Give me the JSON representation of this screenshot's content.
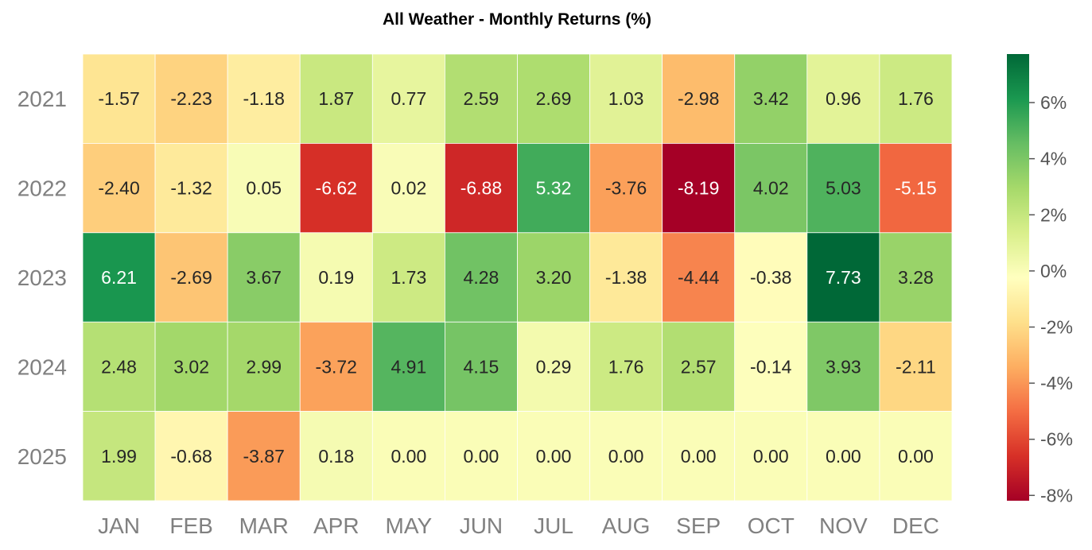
{
  "chart_data": {
    "type": "heatmap",
    "title": "All Weather - Monthly Returns (%)",
    "xlabel": "",
    "ylabel": "",
    "x_categories": [
      "JAN",
      "FEB",
      "MAR",
      "APR",
      "MAY",
      "JUN",
      "JUL",
      "AUG",
      "SEP",
      "OCT",
      "NOV",
      "DEC"
    ],
    "y_categories": [
      "2021",
      "2022",
      "2023",
      "2024",
      "2025"
    ],
    "values": [
      [
        -1.57,
        -2.23,
        -1.18,
        1.87,
        0.77,
        2.59,
        2.69,
        1.03,
        -2.98,
        3.42,
        0.96,
        1.76
      ],
      [
        -2.4,
        -1.32,
        0.05,
        -6.62,
        0.02,
        -6.88,
        5.32,
        -3.76,
        -8.19,
        4.02,
        5.03,
        -5.15
      ],
      [
        6.21,
        -2.69,
        3.67,
        0.19,
        1.73,
        4.28,
        3.2,
        -1.38,
        -4.44,
        -0.38,
        7.73,
        3.28
      ],
      [
        2.48,
        3.02,
        2.99,
        -3.72,
        4.91,
        4.15,
        0.29,
        1.76,
        2.57,
        -0.14,
        3.93,
        -2.11
      ],
      [
        1.99,
        -0.68,
        -3.87,
        0.18,
        0.0,
        0.0,
        0.0,
        0.0,
        0.0,
        0.0,
        0.0,
        0.0
      ]
    ],
    "value_format": "0.00",
    "colormap": "RdYlGn",
    "color_range": [
      -8.19,
      7.73
    ],
    "colorbar": {
      "ticks": [
        -8,
        -6,
        -4,
        -2,
        0,
        2,
        4,
        6
      ],
      "tick_labels": [
        "-8%",
        "-6%",
        "-4%",
        "-2%",
        "0%",
        "2%",
        "4%",
        "6%"
      ]
    },
    "grid": false,
    "cell_border_color": "#ffffff"
  }
}
